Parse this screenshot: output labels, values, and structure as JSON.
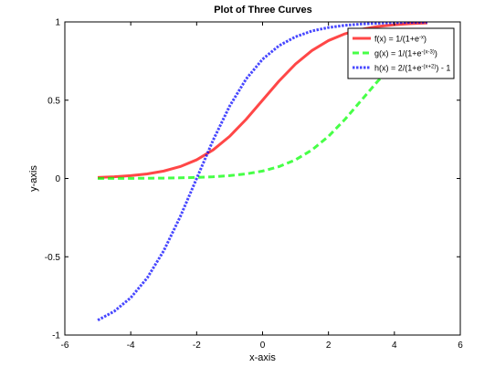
{
  "chart_data": {
    "type": "line",
    "title": "Plot of Three Curves",
    "xlabel": "x-axis",
    "ylabel": "y-axis",
    "xlim": [
      -6,
      6
    ],
    "ylim": [
      -1,
      1
    ],
    "xticks": [
      -6,
      -4,
      -2,
      0,
      2,
      4,
      6
    ],
    "yticks": [
      -1,
      -0.5,
      0,
      0.5,
      1
    ],
    "xtick_labels": [
      "-6",
      "-4",
      "-2",
      "0",
      "2",
      "4",
      "6"
    ],
    "ytick_labels": [
      "-1",
      "-0.5",
      "0",
      "0.5",
      "1"
    ],
    "grid": false,
    "legend_position": "top-right",
    "x": [
      -5,
      -4.5,
      -4,
      -3.5,
      -3,
      -2.5,
      -2,
      -1.5,
      -1,
      -0.5,
      0,
      0.5,
      1,
      1.5,
      2,
      2.5,
      3,
      3.5,
      4,
      4.5,
      5
    ],
    "series": [
      {
        "name": "f(x) = 1/(1+e",
        "name_sup": "-x",
        "name_tail": ")",
        "color": "#ff0000",
        "style": "solid",
        "values": [
          0.0067,
          0.011,
          0.018,
          0.0293,
          0.0474,
          0.0759,
          0.1192,
          0.1824,
          0.2689,
          0.3775,
          0.5,
          0.6225,
          0.7311,
          0.8176,
          0.8808,
          0.9241,
          0.9526,
          0.9707,
          0.982,
          0.989,
          0.9933
        ]
      },
      {
        "name": "g(x) = 1/(1+e",
        "name_sup": "-(x-3)",
        "name_tail": ")",
        "color": "#00ff00",
        "style": "dashed",
        "values": [
          0.0003,
          0.0006,
          0.0009,
          0.0015,
          0.0025,
          0.0041,
          0.0067,
          0.011,
          0.018,
          0.0293,
          0.0474,
          0.0759,
          0.1192,
          0.1824,
          0.2689,
          0.3775,
          0.5,
          0.6225,
          0.7311,
          0.8176,
          0.8808
        ]
      },
      {
        "name": "h(x) = 2/(1+e",
        "name_sup": "-(x+2)",
        "name_tail": ") - 1",
        "color": "#0000ff",
        "style": "dotted",
        "values": [
          -0.9051,
          -0.8483,
          -0.7616,
          -0.6351,
          -0.4621,
          -0.2449,
          0.0,
          0.2449,
          0.4621,
          0.6351,
          0.7616,
          0.8483,
          0.9051,
          0.9423,
          0.964,
          0.978,
          0.9866,
          0.9918,
          0.995,
          0.997,
          0.9982
        ]
      }
    ]
  }
}
